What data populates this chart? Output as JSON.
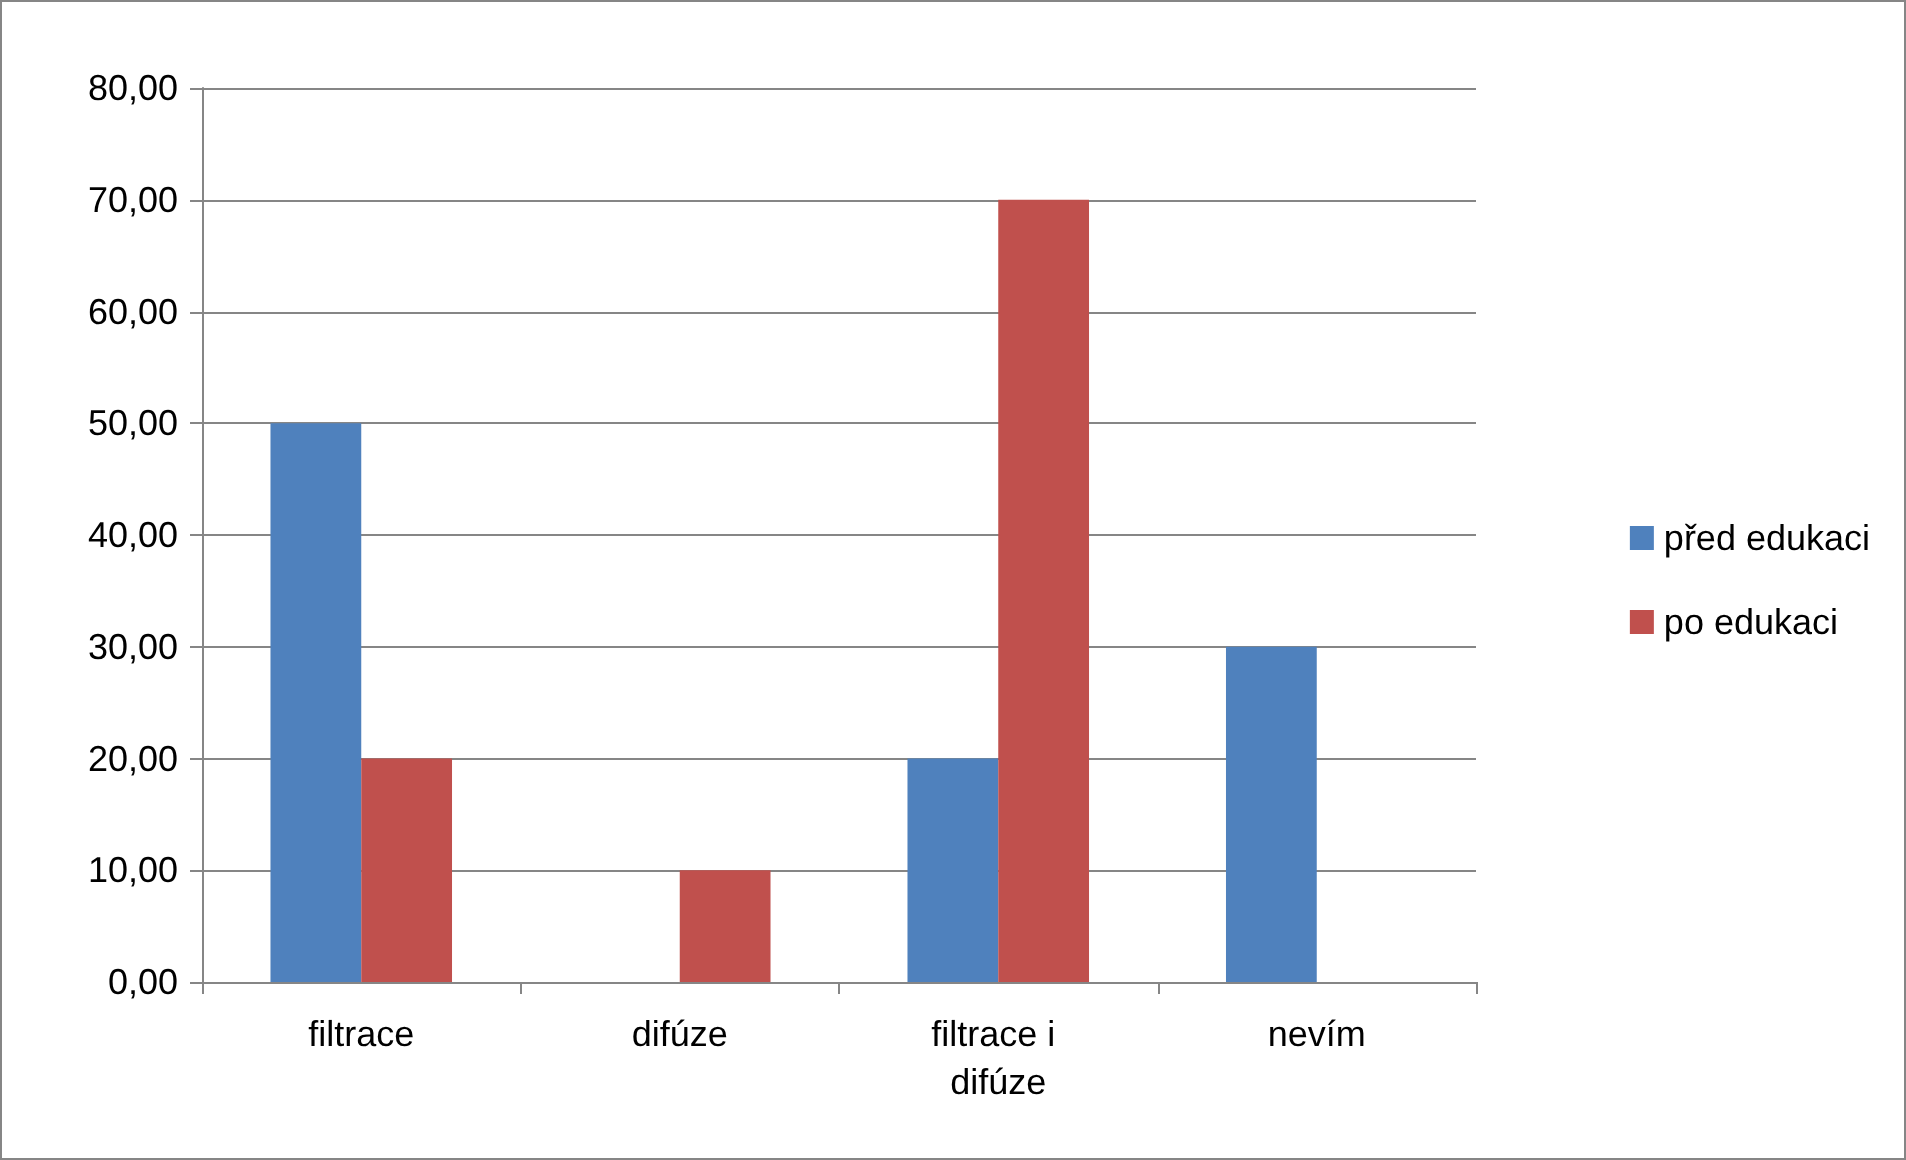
{
  "chart_data": {
    "type": "bar",
    "categories": [
      "filtrace",
      "difúze",
      "filtrace i difúze",
      "nevím"
    ],
    "series": [
      {
        "name": "před edukaci",
        "color": "#4f81bd",
        "values": [
          50,
          0,
          20,
          30
        ]
      },
      {
        "name": "po edukaci",
        "color": "#c0504d",
        "values": [
          20,
          10,
          70,
          0
        ]
      }
    ],
    "ylim": [
      0,
      80
    ],
    "yticks": [
      {
        "value": 0,
        "label": "0,00"
      },
      {
        "value": 10,
        "label": "10,00"
      },
      {
        "value": 20,
        "label": "20,00"
      },
      {
        "value": 30,
        "label": "30,00"
      },
      {
        "value": 40,
        "label": "40,00"
      },
      {
        "value": 50,
        "label": "50,00"
      },
      {
        "value": 60,
        "label": "60,00"
      },
      {
        "value": 70,
        "label": "70,00"
      },
      {
        "value": 80,
        "label": "80,00"
      }
    ],
    "grid": "y",
    "legend": "right"
  }
}
